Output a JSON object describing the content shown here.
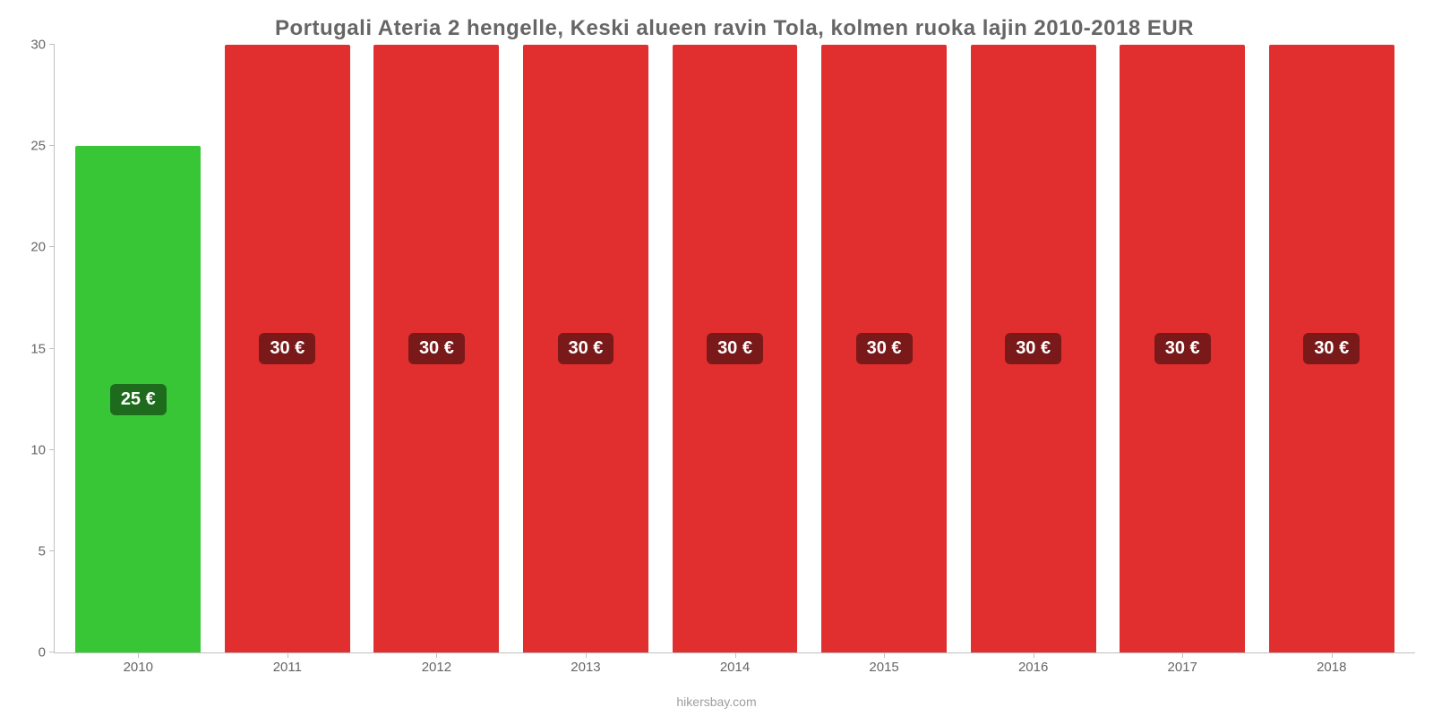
{
  "chart": {
    "type": "bar",
    "title": "Portugali Ateria 2 hengelle, Keski alueen ravin Tola, kolmen ruoka lajin 2010-2018 EUR",
    "title_color": "#666666",
    "title_fontsize": 24,
    "background_color": "#ffffff",
    "axis_color": "#c0c0c0",
    "label_color": "#666666",
    "label_fontsize": 15,
    "y": {
      "min": 0,
      "max": 30,
      "ticks": [
        0,
        5,
        10,
        15,
        20,
        25,
        30
      ]
    },
    "bar_width_ratio": 0.84,
    "bars": [
      {
        "year": "2010",
        "value": 25,
        "label": "25 €",
        "bar_color": "#38c637",
        "badge_bg": "#1e6b1e"
      },
      {
        "year": "2011",
        "value": 30,
        "label": "30 €",
        "bar_color": "#e12e2e",
        "badge_bg": "#7a1919"
      },
      {
        "year": "2012",
        "value": 30,
        "label": "30 €",
        "bar_color": "#e12e2e",
        "badge_bg": "#7a1919"
      },
      {
        "year": "2013",
        "value": 30,
        "label": "30 €",
        "bar_color": "#e12e2e",
        "badge_bg": "#7a1919"
      },
      {
        "year": "2014",
        "value": 30,
        "label": "30 €",
        "bar_color": "#e12e2e",
        "badge_bg": "#7a1919"
      },
      {
        "year": "2015",
        "value": 30,
        "label": "30 €",
        "bar_color": "#e12e2e",
        "badge_bg": "#7a1919"
      },
      {
        "year": "2016",
        "value": 30,
        "label": "30 €",
        "bar_color": "#e12e2e",
        "badge_bg": "#7a1919"
      },
      {
        "year": "2017",
        "value": 30,
        "label": "30 €",
        "bar_color": "#e12e2e",
        "badge_bg": "#7a1919"
      },
      {
        "year": "2018",
        "value": 30,
        "label": "30 €",
        "bar_color": "#e12e2e",
        "badge_bg": "#7a1919"
      }
    ],
    "attribution": "hikersbay.com",
    "attribution_color": "#9e9e9e"
  }
}
